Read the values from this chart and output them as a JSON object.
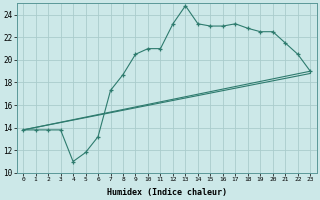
{
  "xlabel": "Humidex (Indice chaleur)",
  "background_color": "#cce8e8",
  "grid_color": "#aacccc",
  "line_color": "#2e7b6e",
  "xlim": [
    -0.5,
    23.5
  ],
  "ylim": [
    10,
    25
  ],
  "yticks": [
    10,
    12,
    14,
    16,
    18,
    20,
    22,
    24
  ],
  "xticks": [
    0,
    1,
    2,
    3,
    4,
    5,
    6,
    7,
    8,
    9,
    10,
    11,
    12,
    13,
    14,
    15,
    16,
    17,
    18,
    19,
    20,
    21,
    22,
    23
  ],
  "line1_x": [
    0,
    1,
    2,
    3,
    4,
    5,
    6,
    7,
    8,
    9,
    10,
    11,
    12,
    13,
    14,
    15,
    16,
    17,
    18,
    19,
    20,
    21,
    22,
    23
  ],
  "line1_y": [
    13.8,
    13.8,
    13.8,
    13.8,
    11.0,
    11.8,
    13.2,
    17.3,
    18.7,
    20.5,
    21.0,
    21.0,
    23.2,
    24.8,
    23.2,
    23.0,
    23.0,
    23.2,
    22.8,
    22.5,
    22.5,
    21.5,
    20.5,
    19.0
  ],
  "line2_x": [
    0,
    23
  ],
  "line2_y": [
    13.8,
    19.0
  ],
  "line3_x": [
    0,
    23
  ],
  "line3_y": [
    13.8,
    18.8
  ]
}
